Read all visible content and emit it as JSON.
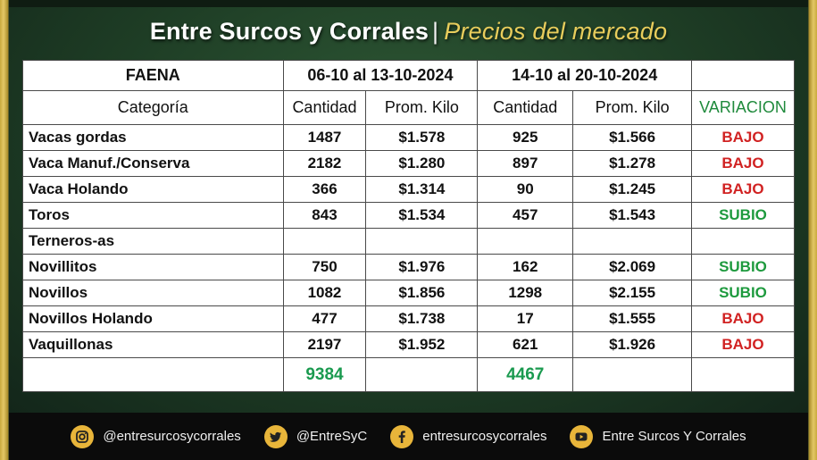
{
  "header": {
    "title_main": "Entre Surcos y Corrales",
    "separator": "|",
    "title_sub": "Precios del mercado"
  },
  "table": {
    "faena_label": "FAENA",
    "period1": "06-10 al 13-10-2024",
    "period2": "14-10 al 20-10-2024",
    "columns": {
      "categoria": "Categoría",
      "cantidad1": "Cantidad",
      "prom1": "Prom. Kilo",
      "cantidad2": "Cantidad",
      "prom2": "Prom. Kilo",
      "variacion": "VARIACION"
    },
    "rows": [
      {
        "categoria": "Vacas gordas",
        "cantidad1": "1487",
        "prom1": "$1.578",
        "cantidad2": "925",
        "prom2": "$1.566",
        "variacion": "BAJO"
      },
      {
        "categoria": "Vaca Manuf./Conserva",
        "cantidad1": "2182",
        "prom1": "$1.280",
        "cantidad2": "897",
        "prom2": "$1.278",
        "variacion": "BAJO"
      },
      {
        "categoria": "Vaca Holando",
        "cantidad1": "366",
        "prom1": "$1.314",
        "cantidad2": "90",
        "prom2": "$1.245",
        "variacion": "BAJO"
      },
      {
        "categoria": "Toros",
        "cantidad1": "843",
        "prom1": "$1.534",
        "cantidad2": "457",
        "prom2": "$1.543",
        "variacion": "SUBIO"
      },
      {
        "categoria": "Terneros-as",
        "cantidad1": "",
        "prom1": "",
        "cantidad2": "",
        "prom2": "",
        "variacion": ""
      },
      {
        "categoria": "Novillitos",
        "cantidad1": "750",
        "prom1": "$1.976",
        "cantidad2": "162",
        "prom2": "$2.069",
        "variacion": "SUBIO"
      },
      {
        "categoria": "Novillos",
        "cantidad1": "1082",
        "prom1": "$1.856",
        "cantidad2": "1298",
        "prom2": "$2.155",
        "variacion": "SUBIO"
      },
      {
        "categoria": "Novillos Holando",
        "cantidad1": "477",
        "prom1": "$1.738",
        "cantidad2": "17",
        "prom2": "$1.555",
        "variacion": "BAJO"
      },
      {
        "categoria": "Vaquillonas",
        "cantidad1": "2197",
        "prom1": "$1.952",
        "cantidad2": "621",
        "prom2": "$1.926",
        "variacion": "BAJO"
      }
    ],
    "totals": {
      "cantidad1": "9384",
      "cantidad2": "4467"
    }
  },
  "footer": {
    "instagram": {
      "icon": "instagram-icon",
      "text": "@entresurcosycorrales"
    },
    "twitter": {
      "icon": "twitter-icon",
      "text": "@EntreSyC"
    },
    "facebook": {
      "icon": "facebook-icon",
      "text": "entresurcosycorrales"
    },
    "youtube": {
      "icon": "youtube-icon",
      "text": "Entre Surcos Y Corrales"
    }
  },
  "colors": {
    "bajo": "#d12222",
    "subio": "#1e9a3e",
    "totals": "#1a9a4f",
    "title_sub": "#e8cd5c",
    "icon_badge": "#e8b53a",
    "background": "#1e3d25"
  }
}
